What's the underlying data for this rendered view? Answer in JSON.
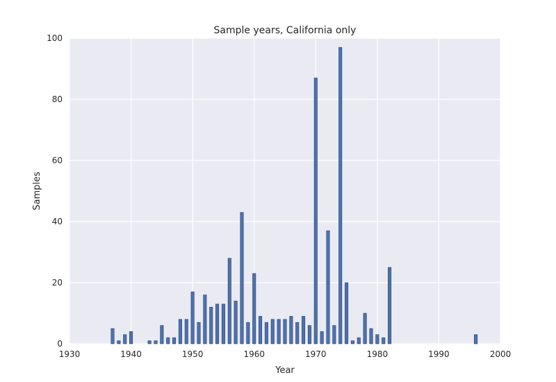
{
  "chart_data": {
    "type": "bar",
    "title": "Sample years, California only",
    "xlabel": "Year",
    "ylabel": "Samples",
    "xlim": [
      1930,
      2000
    ],
    "ylim": [
      0,
      100
    ],
    "xticks": [
      1930,
      1940,
      1950,
      1960,
      1970,
      1980,
      1990,
      2000
    ],
    "yticks": [
      0,
      20,
      40,
      60,
      80,
      100
    ],
    "grid": true,
    "legend": "none",
    "colors": {
      "bar_fill": "#4c72b0",
      "bar_edge": "#2b4166",
      "plot_background": "#eaeaf2",
      "grid": "#ffffff",
      "text": "#262626"
    },
    "x": [
      1937,
      1938,
      1939,
      1940,
      1941,
      1942,
      1943,
      1944,
      1945,
      1946,
      1947,
      1948,
      1949,
      1950,
      1951,
      1952,
      1953,
      1954,
      1955,
      1956,
      1957,
      1958,
      1959,
      1960,
      1961,
      1962,
      1963,
      1964,
      1965,
      1966,
      1967,
      1968,
      1969,
      1970,
      1971,
      1972,
      1973,
      1974,
      1975,
      1976,
      1977,
      1978,
      1979,
      1980,
      1981,
      1982,
      1983,
      1984,
      1985,
      1986,
      1987,
      1988,
      1989,
      1990,
      1991,
      1992,
      1993,
      1994,
      1995,
      1996
    ],
    "values": [
      5,
      1,
      3,
      4,
      0,
      0,
      1,
      1,
      6,
      2,
      2,
      8,
      8,
      17,
      7,
      16,
      12,
      13,
      13,
      28,
      14,
      43,
      7,
      23,
      9,
      7,
      8,
      8,
      8,
      9,
      7,
      9,
      6,
      87,
      4,
      37,
      6,
      97,
      20,
      1,
      2,
      10,
      5,
      3,
      2,
      25,
      0,
      0,
      0,
      0,
      0,
      0,
      0,
      0,
      0,
      0,
      0,
      0,
      0,
      3
    ]
  }
}
